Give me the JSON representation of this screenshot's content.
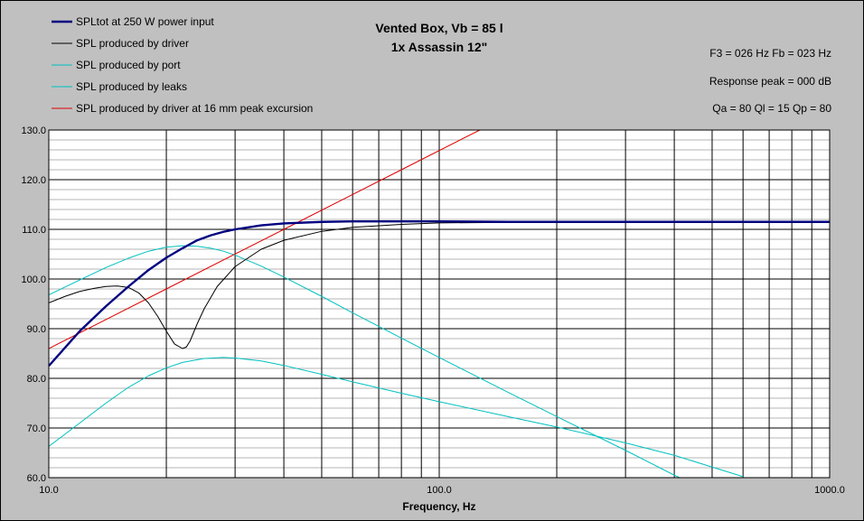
{
  "chart_data": {
    "type": "line",
    "title": "Vented Box, Vb = 85 l",
    "subtitle": "1x Assassin 12\"",
    "xlabel": "Frequency, Hz",
    "ylabel": "",
    "x_scale": "log",
    "xlim": [
      10,
      1000
    ],
    "ylim": [
      60,
      130
    ],
    "grid": true,
    "legend_position": "top-left",
    "x_tick_labels": [
      "10.0",
      "100.0",
      "1000.0"
    ],
    "x_tick_values": [
      10,
      100,
      1000
    ],
    "y_tick_labels": [
      "60.0",
      "70.0",
      "80.0",
      "90.0",
      "100.0",
      "110.0",
      "120.0",
      "130.0"
    ],
    "y_tick_values": [
      60,
      70,
      80,
      90,
      100,
      110,
      120,
      130
    ],
    "info_lines": [
      "F3 = 026 Hz  Fb = 023 Hz",
      "Response peak = 000 dB",
      "Qa = 80  Ql = 15  Qp = 80"
    ],
    "series": [
      {
        "name": "SPLtot at 250 W power input",
        "color": "#000080",
        "width": 2.4,
        "x": [
          10,
          12,
          14,
          16,
          18,
          20,
          22,
          24,
          26,
          28,
          30,
          35,
          40,
          50,
          60,
          80,
          100,
          150,
          200,
          300,
          500,
          1000
        ],
        "y": [
          82.5,
          89.5,
          94.5,
          98.5,
          101.8,
          104.3,
          106.2,
          107.8,
          108.8,
          109.5,
          110.0,
          110.8,
          111.2,
          111.5,
          111.6,
          111.6,
          111.6,
          111.5,
          111.5,
          111.5,
          111.5,
          111.5
        ]
      },
      {
        "name": "SPL produced by driver",
        "color": "#000000",
        "width": 1,
        "x": [
          10,
          11,
          12,
          13,
          14,
          15,
          16,
          17,
          18,
          19,
          20,
          21,
          22,
          22.5,
          23,
          24,
          25,
          27,
          30,
          35,
          40,
          50,
          60,
          80,
          100,
          150,
          200,
          300,
          500,
          1000
        ],
        "y": [
          95.2,
          96.5,
          97.5,
          98.1,
          98.5,
          98.6,
          98.3,
          97.2,
          95.2,
          92.5,
          89.5,
          86.9,
          86.0,
          86.3,
          87.5,
          91.0,
          94.0,
          98.5,
          102.5,
          106.0,
          107.8,
          109.6,
          110.4,
          111.0,
          111.3,
          111.4,
          111.5,
          111.5,
          111.5,
          111.5
        ]
      },
      {
        "name": "SPL produced by port",
        "color": "#00c0c0",
        "width": 1,
        "x": [
          10,
          12,
          14,
          16,
          18,
          20,
          22,
          24,
          26,
          28,
          30,
          35,
          40,
          50,
          60,
          80,
          100,
          150,
          200,
          300,
          400,
          500
        ],
        "y": [
          96.8,
          99.8,
          102.3,
          104.2,
          105.6,
          106.4,
          106.7,
          106.6,
          106.2,
          105.6,
          104.8,
          102.6,
          100.4,
          96.5,
          93.2,
          88.1,
          84.2,
          77.2,
          72.3,
          65.5,
          60.5,
          57.0
        ]
      },
      {
        "name": "SPL produced by leaks",
        "color": "#00c0c0",
        "width": 1,
        "x": [
          10,
          12,
          14,
          16,
          18,
          20,
          22,
          25,
          28,
          30,
          35,
          40,
          50,
          60,
          80,
          100,
          150,
          200,
          300,
          400,
          600
        ],
        "y": [
          66.3,
          71.0,
          75.0,
          78.2,
          80.5,
          82.1,
          83.2,
          84.0,
          84.2,
          84.1,
          83.5,
          82.6,
          80.8,
          79.3,
          77.0,
          75.3,
          72.3,
          70.2,
          67.0,
          64.5,
          60.2
        ]
      },
      {
        "name": "SPL produced by driver at 16 mm peak excursion",
        "color": "#e00000",
        "width": 1,
        "x": [
          10,
          20,
          40,
          80,
          127
        ],
        "y": [
          86.0,
          98.0,
          110.0,
          122.0,
          130.0
        ]
      }
    ]
  }
}
